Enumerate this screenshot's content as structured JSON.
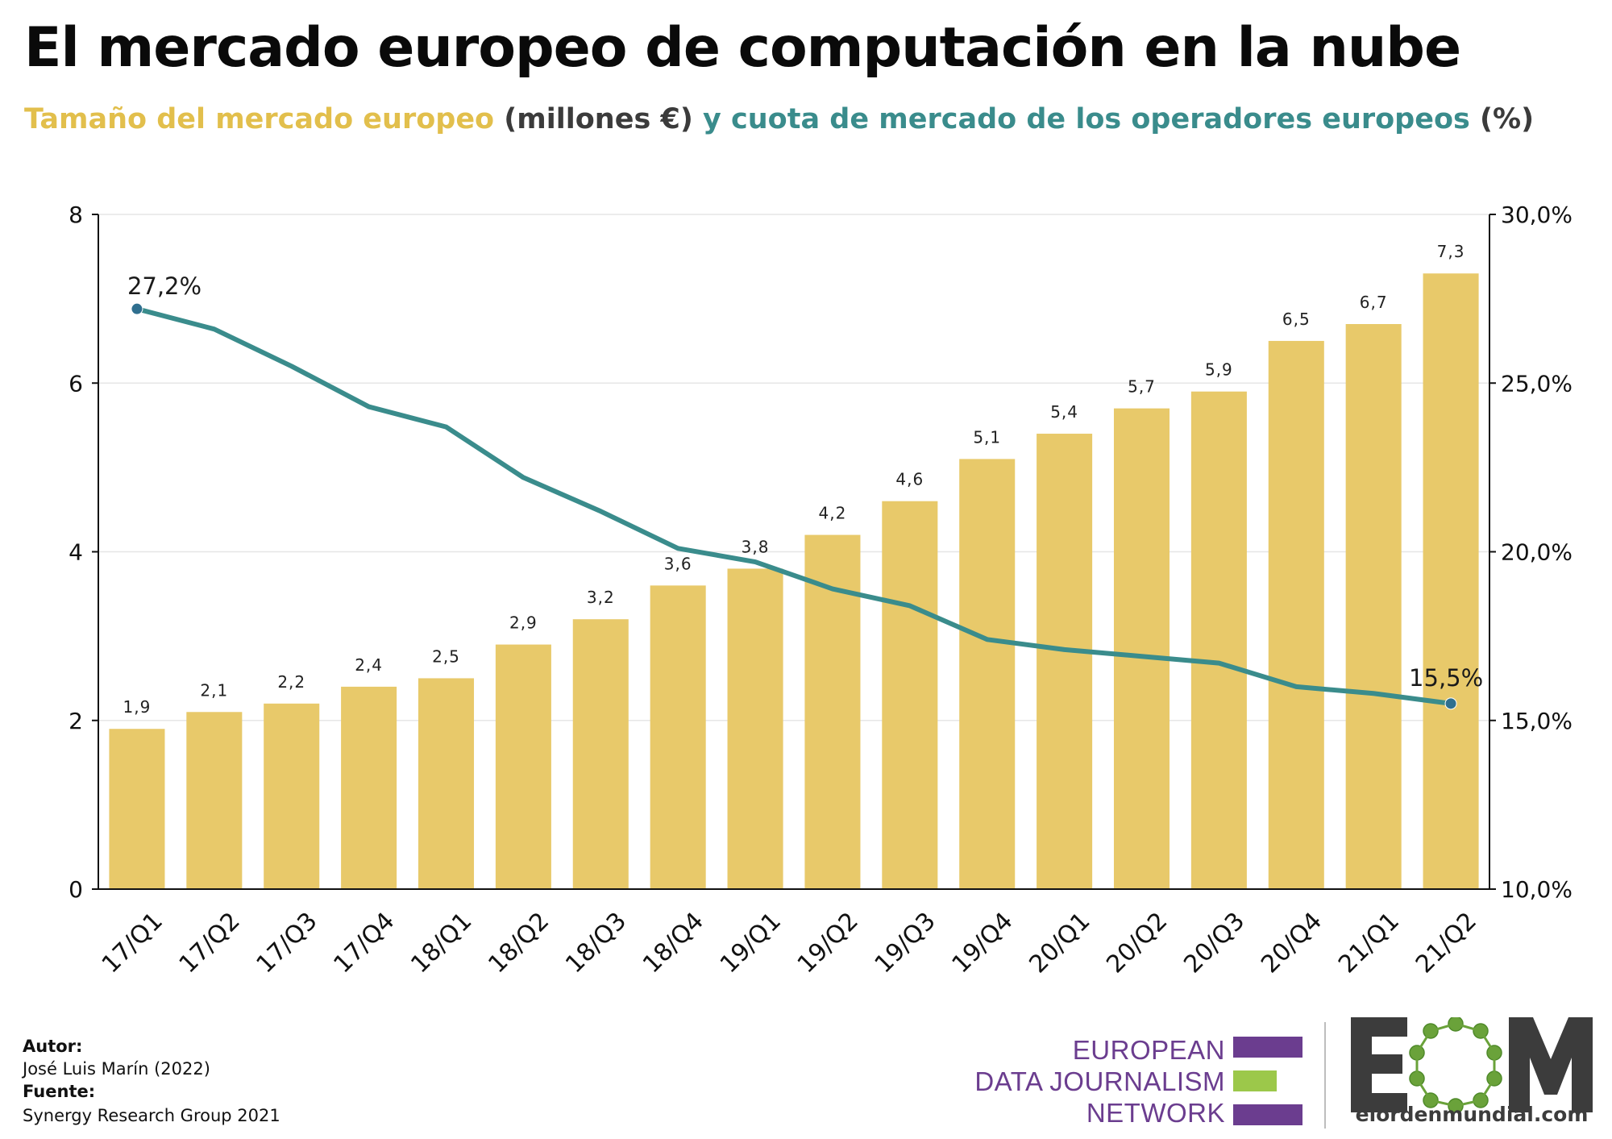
{
  "title": "El mercado europeo de computación en la nube",
  "subtitle": {
    "part1": "Tamaño del mercado europeo",
    "part2": " (millones €) ",
    "part3": "y cuota de mercado de los operadores europeos",
    "part4": " (%)"
  },
  "colors": {
    "bar": "#e8c96a",
    "line": "#3a8c8c",
    "marker": "#2f6f8f",
    "subtitle_yellow": "#e2bf4c",
    "subtitle_gray": "#3b3b3b",
    "subtitle_teal": "#3a8c8c",
    "edjn_purple": "#6b3d8f",
    "edjn_green": "#9cc84a",
    "eom_gray": "#3c3c3c",
    "eom_green": "#6aa23a"
  },
  "chart_data": {
    "type": "bar",
    "categories": [
      "17/Q1",
      "17/Q2",
      "17/Q3",
      "17/Q4",
      "18/Q1",
      "18/Q2",
      "18/Q3",
      "18/Q4",
      "19/Q1",
      "19/Q2",
      "19/Q3",
      "19/Q4",
      "20/Q1",
      "20/Q2",
      "20/Q3",
      "20/Q4",
      "21/Q1",
      "21/Q2"
    ],
    "series": [
      {
        "type": "bar",
        "axis": "left",
        "values": [
          1.9,
          2.1,
          2.2,
          2.4,
          2.5,
          2.9,
          3.2,
          3.6,
          3.8,
          4.2,
          4.6,
          5.1,
          5.4,
          5.7,
          5.9,
          6.5,
          6.7,
          7.3
        ],
        "labels": [
          "1,9",
          "2,1",
          "2,2",
          "2,4",
          "2,5",
          "2,9",
          "3,2",
          "3,6",
          "3,8",
          "4,2",
          "4,6",
          "5,1",
          "5,4",
          "5,7",
          "5,9",
          "6,5",
          "6,7",
          "7,3"
        ]
      },
      {
        "type": "line",
        "axis": "right",
        "values": [
          27.2,
          26.6,
          25.5,
          24.3,
          23.7,
          22.2,
          21.2,
          20.1,
          19.7,
          18.9,
          18.4,
          17.4,
          17.1,
          16.9,
          16.7,
          16.0,
          15.8,
          15.5
        ],
        "point_labels": {
          "0": "27,2%",
          "17": "15,5%"
        }
      }
    ],
    "y_left": {
      "lim": [
        0,
        8
      ],
      "ticks": [
        0,
        2,
        4,
        6,
        8
      ],
      "tick_labels": [
        "0",
        "2",
        "4",
        "6",
        "8"
      ]
    },
    "y_right": {
      "lim": [
        10,
        30
      ],
      "ticks": [
        10,
        15,
        20,
        25,
        30
      ],
      "tick_labels": [
        "10,0%",
        "15,0%",
        "20,0%",
        "25,0%",
        "30,0%"
      ]
    },
    "grid": true,
    "legend": "none"
  },
  "credits": {
    "author_label": "Autor:",
    "author": "José Luis Marín (2022)",
    "source_label": "Fuente:",
    "source": "Synergy Research Group 2021"
  },
  "logos": {
    "edjn": {
      "line1": "EUROPEAN",
      "line2": "DATA JOURNALISM",
      "line3": "NETWORK"
    },
    "eom": {
      "wordmark": "EOM",
      "url": "elordenmundial.com"
    }
  }
}
